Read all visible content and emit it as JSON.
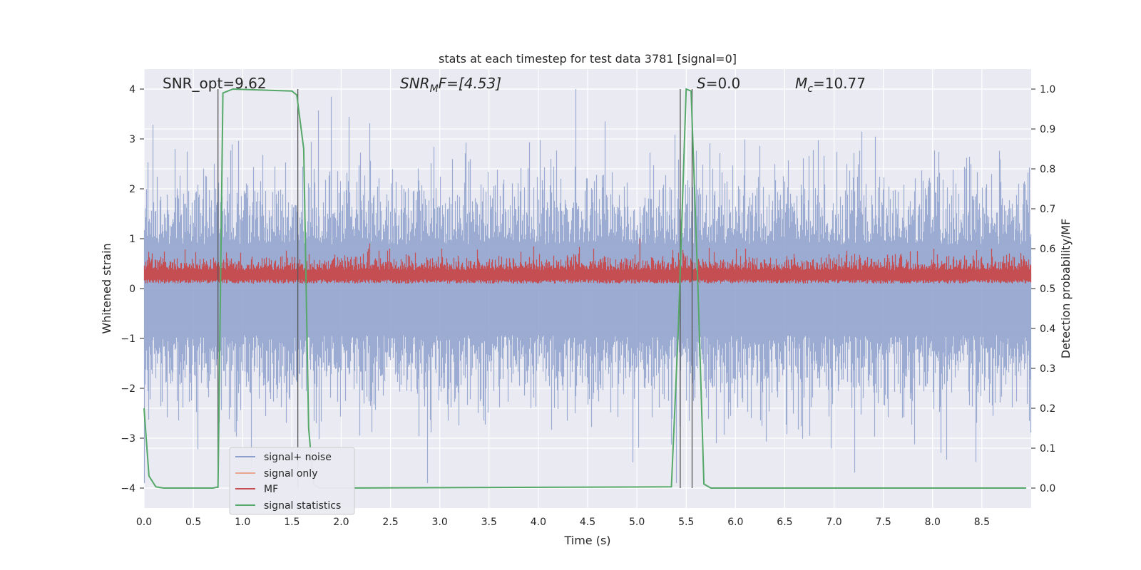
{
  "chart_data": {
    "type": "line",
    "title": "stats at each timestep for test data 3781 [signal=0]",
    "xlabel": "Time (s)",
    "ylabel_left": "Whitened strain",
    "ylabel_right": "Detection probability/MF",
    "xlim": [
      0.0,
      9.0
    ],
    "ylim_left": [
      -4.4,
      4.4
    ],
    "ylim_right": [
      -0.05,
      1.05
    ],
    "x_ticks": [
      "0.0",
      "0.5",
      "1.0",
      "1.5",
      "2.0",
      "2.5",
      "3.0",
      "3.5",
      "4.0",
      "4.5",
      "5.0",
      "5.5",
      "6.0",
      "6.5",
      "7.0",
      "7.5",
      "8.0",
      "8.5"
    ],
    "y_left_ticks": [
      "4",
      "3",
      "2",
      "1",
      "0",
      "−1",
      "−2",
      "−3",
      "−4"
    ],
    "y_right_ticks": [
      "1.0",
      "0.9",
      "0.8",
      "0.7",
      "0.6",
      "0.5",
      "0.4",
      "0.3",
      "0.2",
      "0.1",
      "0.0"
    ],
    "grid": true,
    "annotations": {
      "snr_opt": "SNR_opt=9.62",
      "snr_mf_name": "SNR",
      "snr_mf_sub": "M",
      "snr_mf_rest": "F=[4.53]",
      "s_name": "S",
      "s_rest": "=0.0",
      "mc_name": "M",
      "mc_sub": "c",
      "mc_rest": "=10.77"
    },
    "series": [
      {
        "name": "signal+ noise",
        "color": "#8da0cb",
        "axis": "left",
        "envelope_upper_typical": 1.6,
        "envelope_lower_typical": -1.7,
        "min": -3.9,
        "max": 4.0
      },
      {
        "name": "signal only",
        "color": "#e8a68f",
        "axis": "left"
      },
      {
        "name": "MF",
        "color": "#c44e52",
        "axis": "left",
        "baseline": 0.25,
        "typical_peak": 0.6,
        "max": 1.0
      },
      {
        "name": "signal statistics",
        "color": "#55a868",
        "axis": "right",
        "x": [
          0.0,
          0.05,
          0.12,
          0.2,
          0.7,
          0.75,
          0.8,
          0.9,
          1.5,
          1.55,
          1.62,
          1.67,
          1.72,
          1.78,
          1.85,
          5.35,
          5.42,
          5.5,
          5.55,
          5.62,
          5.68,
          5.75,
          8.95
        ],
        "values": [
          0.2,
          0.03,
          0.003,
          0.0,
          0.0,
          0.003,
          0.99,
          1.0,
          0.995,
          0.985,
          0.85,
          0.15,
          0.01,
          0.0,
          0.0,
          0.003,
          0.4,
          1.0,
          0.995,
          0.5,
          0.01,
          0.0,
          0.0
        ]
      }
    ],
    "vertical_lines": [
      0.75,
      1.56,
      5.44,
      5.56
    ]
  }
}
